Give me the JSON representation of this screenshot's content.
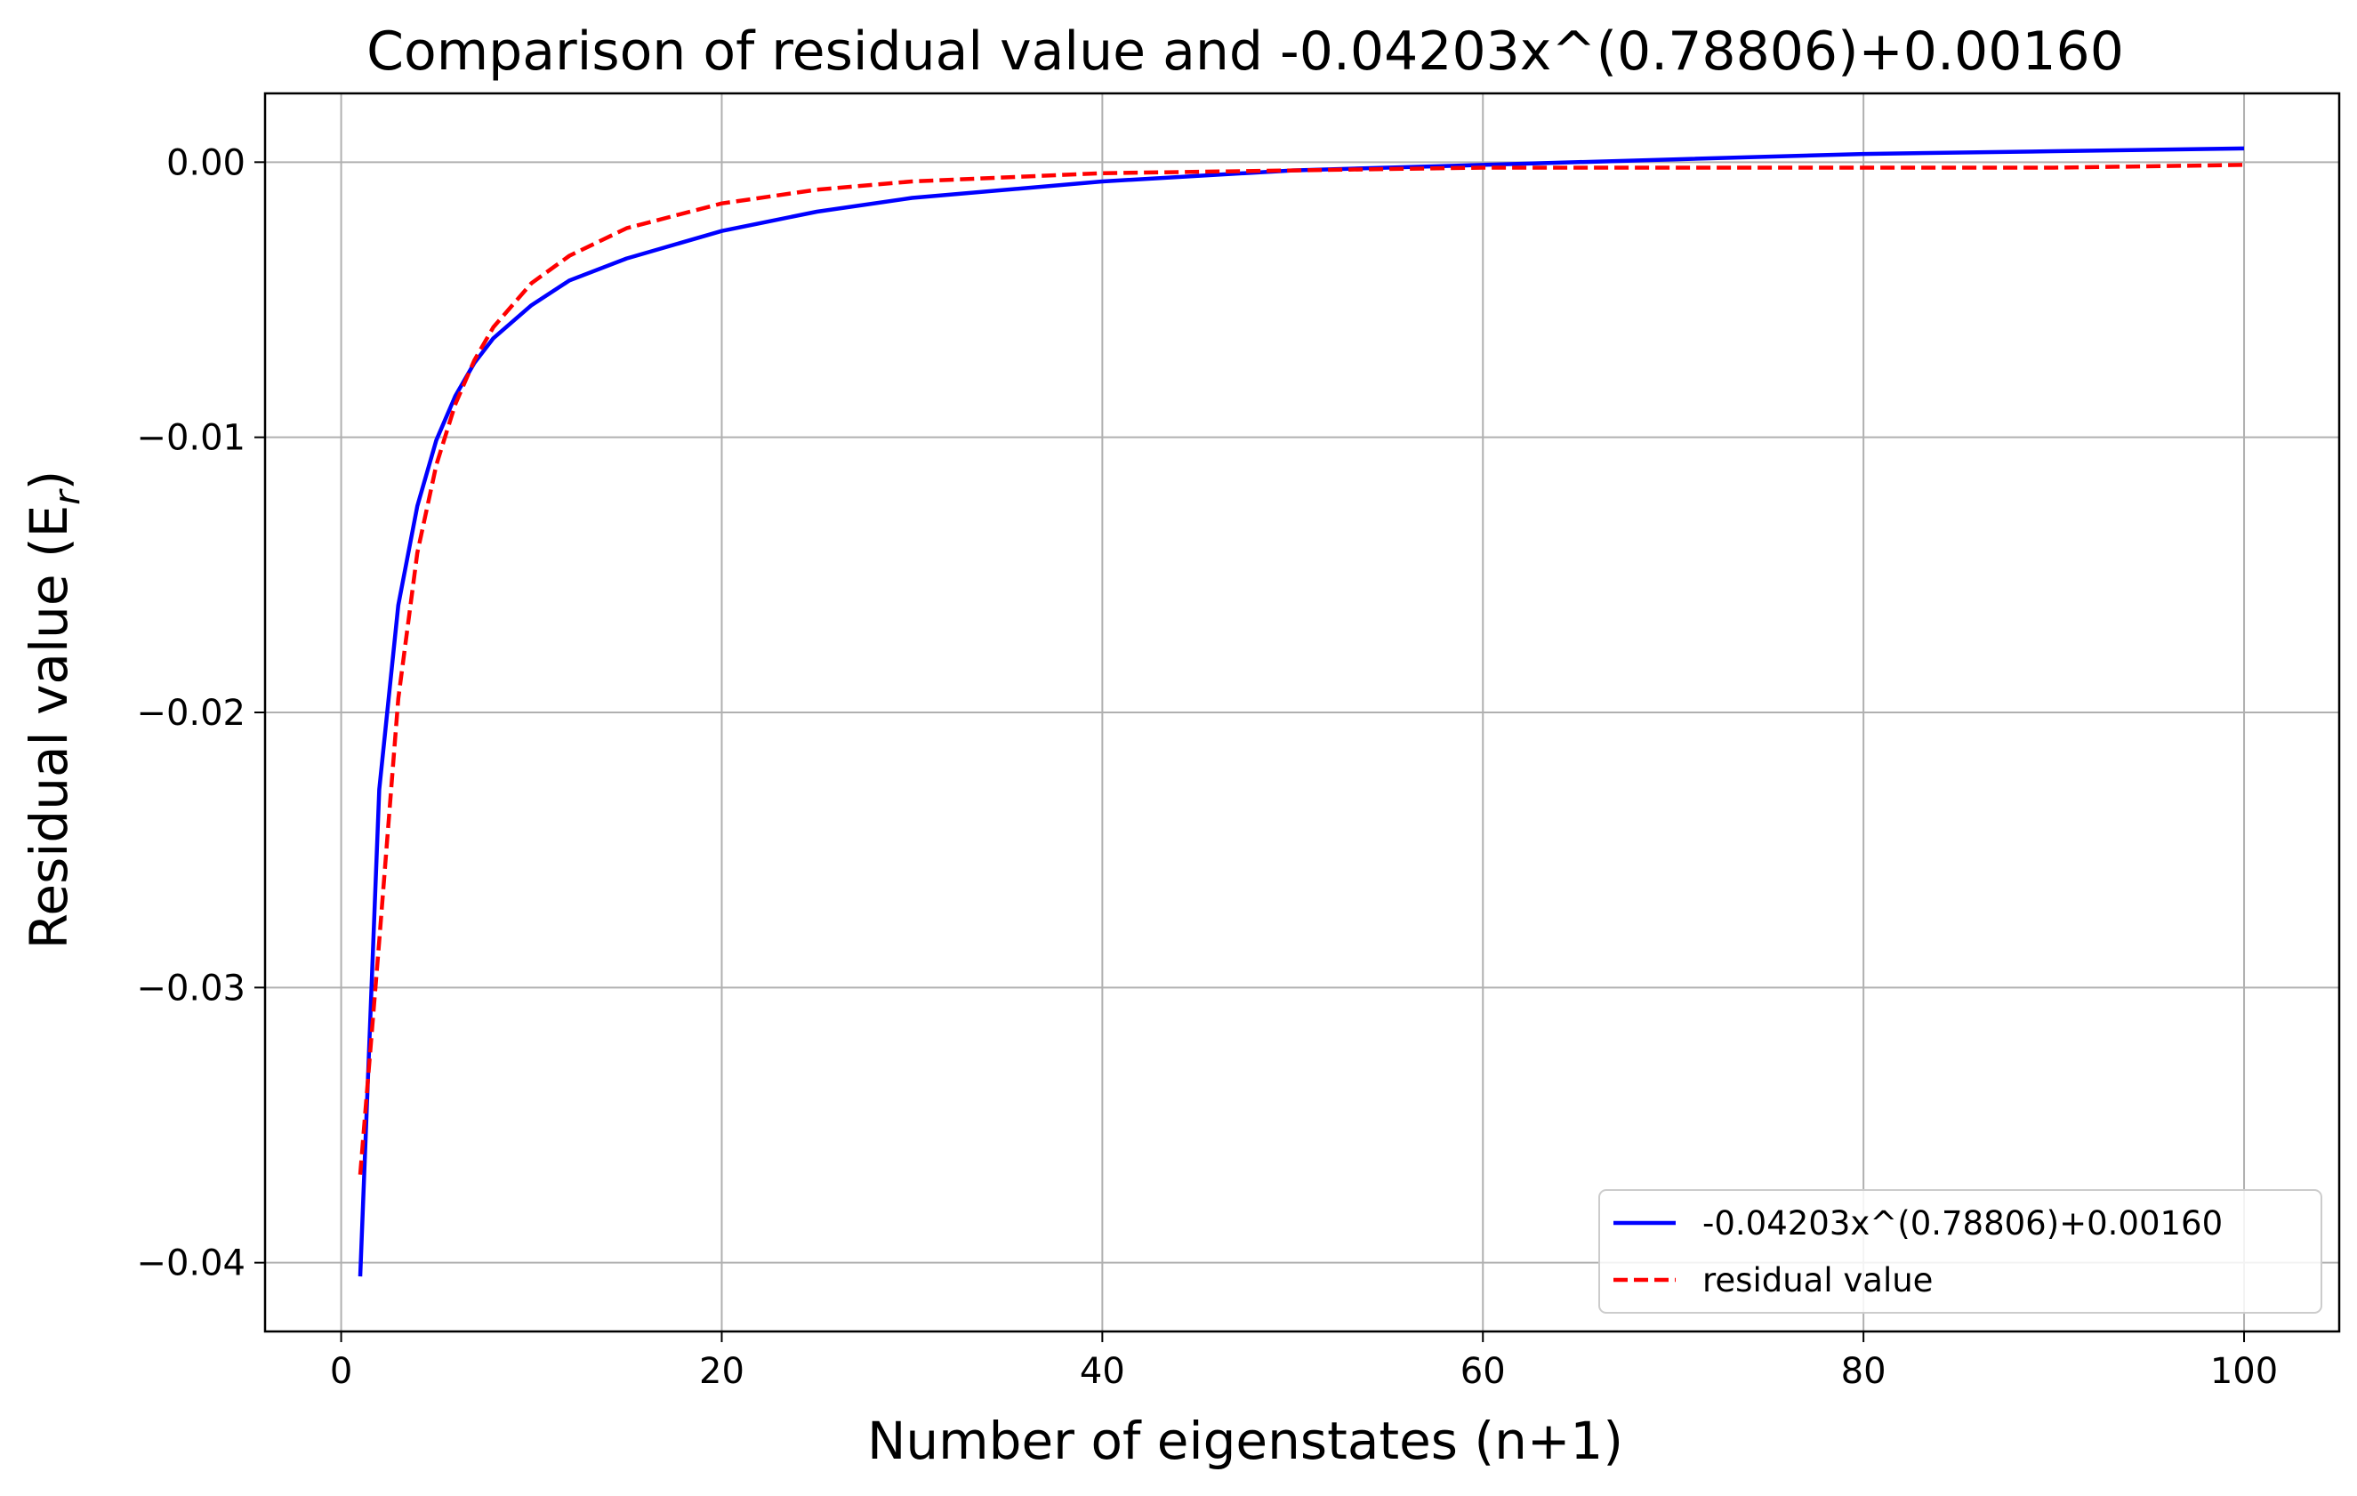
{
  "chart_data": {
    "type": "line",
    "title": "Comparison of residual value and -0.04203x^(0.78806)+0.00160",
    "xlabel": "Number of eigenstates (n+1)",
    "ylabel_main": "Residual value (E",
    "ylabel_sub": "r",
    "ylabel_close": ")",
    "xlim": [
      -4,
      105
    ],
    "ylim": [
      -0.0425,
      0.0025
    ],
    "xticks": [
      0,
      20,
      40,
      60,
      80,
      100
    ],
    "xtick_labels": [
      "0",
      "20",
      "40",
      "60",
      "80",
      "100"
    ],
    "yticks": [
      0.0,
      -0.01,
      -0.02,
      -0.03,
      -0.04
    ],
    "ytick_labels": [
      "0.00",
      "−0.01",
      "−0.02",
      "−0.03",
      "−0.04"
    ],
    "grid": true,
    "legend_position": "lower-right",
    "series": [
      {
        "name": "-0.04203x^(0.78806)+0.00160",
        "color": "#0000ff",
        "style": "solid",
        "x": [
          1,
          2,
          3,
          4,
          5,
          6,
          7,
          8,
          10,
          12,
          15,
          20,
          25,
          30,
          40,
          50,
          60,
          70,
          80,
          90,
          100
        ],
        "y": [
          -0.0405,
          -0.0228,
          -0.0161,
          -0.0125,
          -0.0101,
          -0.0085,
          -0.0073,
          -0.0064,
          -0.0052,
          -0.0043,
          -0.0035,
          -0.0025,
          -0.0018,
          -0.0013,
          -0.0007,
          -0.0003,
          -0.0001,
          0.0001,
          0.0003,
          0.0004,
          0.0005
        ]
      },
      {
        "name": "residual value",
        "color": "#ff0000",
        "style": "dashed",
        "x": [
          1,
          2,
          3,
          4,
          5,
          6,
          7,
          8,
          10,
          12,
          15,
          20,
          25,
          30,
          40,
          50,
          60,
          70,
          80,
          90,
          100
        ],
        "y": [
          -0.0368,
          -0.0283,
          -0.0195,
          -0.0142,
          -0.011,
          -0.0088,
          -0.0072,
          -0.006,
          -0.0044,
          -0.0034,
          -0.0024,
          -0.0015,
          -0.001,
          -0.0007,
          -0.0004,
          -0.0003,
          -0.0002,
          -0.0002,
          -0.0002,
          -0.0002,
          -0.0001
        ]
      }
    ]
  }
}
